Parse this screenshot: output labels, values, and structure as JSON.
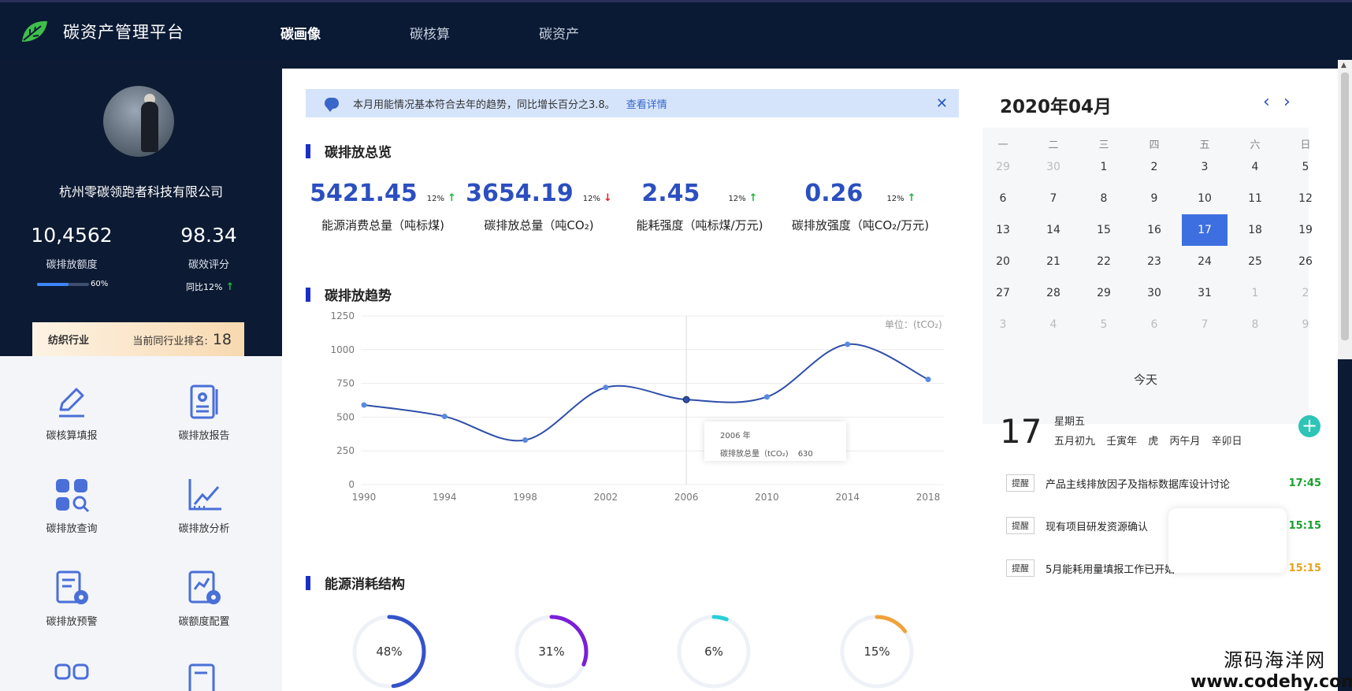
{
  "app": {
    "title": "碳资产管理平台"
  },
  "nav": {
    "items": [
      "碳画像",
      "碳核算",
      "碳资产"
    ]
  },
  "profile": {
    "company": "杭州零碳领跑者科技有限公司",
    "quota_value": "10,4562",
    "quota_label": "碳排放额度",
    "quota_progress_label": "60%",
    "quota_progress": 0.6,
    "score_value": "98.34",
    "score_label": "碳效评分",
    "score_yoy": "同比12%",
    "industry": "纺织行业",
    "rank_label": "当前同行业排名:",
    "rank_value": "18"
  },
  "menu": {
    "items": [
      {
        "label": "碳核算填报",
        "icon": "edit-icon"
      },
      {
        "label": "碳排放报告",
        "icon": "report-icon"
      },
      {
        "label": "碳排放查询",
        "icon": "query-icon"
      },
      {
        "label": "碳排放分析",
        "icon": "analysis-icon"
      },
      {
        "label": "碳排放预警",
        "icon": "warning-icon"
      },
      {
        "label": "碳额度配置",
        "icon": "config-icon"
      }
    ]
  },
  "notice": {
    "text": "本月用能情况基本符合去年的趋势，同比增长百分之3.8。",
    "link": "查看详情",
    "close": "✕"
  },
  "overview": {
    "title": "碳排放总览",
    "kpis": [
      {
        "value": "5421.45",
        "pct": "12%",
        "trend": "up",
        "label": "能源消费总量（吨标煤)"
      },
      {
        "value": "3654.19",
        "pct": "12%",
        "trend": "down",
        "label": "碳排放总量（吨CO₂)"
      },
      {
        "value": "2.45",
        "pct": "12%",
        "trend": "up",
        "label": "能耗强度（吨标煤/万元)"
      },
      {
        "value": "0.26",
        "pct": "12%",
        "trend": "up",
        "label": "碳排放强度（吨CO₂/万元)"
      }
    ]
  },
  "trend": {
    "title": "碳排放趋势",
    "unit": "单位：(tCO₂)",
    "tooltip": {
      "year": "2006 年",
      "series": "碳排放总量（tCO₂)",
      "value": "630"
    }
  },
  "chart_data": {
    "type": "line",
    "x": [
      "1990",
      "1994",
      "1998",
      "2002",
      "2006",
      "2010",
      "2014",
      "2018"
    ],
    "series": [
      {
        "name": "碳排放总量（tCO₂)",
        "values": [
          590,
          505,
          330,
          720,
          630,
          650,
          1040,
          780
        ]
      }
    ],
    "ylim": [
      0,
      1250
    ],
    "yticks": [
      0,
      250,
      500,
      750,
      1000,
      1250
    ],
    "grid": true,
    "color": "#2e4ea8"
  },
  "energy": {
    "title": "能源消耗结构",
    "rings": [
      {
        "label": "48%",
        "value": 0.48,
        "color": "#3552c8"
      },
      {
        "label": "31%",
        "value": 0.31,
        "color": "#7a1fd6"
      },
      {
        "label": "6%",
        "value": 0.06,
        "color": "#27d0d8"
      },
      {
        "label": "15%",
        "value": 0.15,
        "color": "#f0a23a"
      }
    ]
  },
  "calendar": {
    "month_label": "2020年04月",
    "prev": "‹",
    "next": "›",
    "weekdays": [
      "一",
      "二",
      "三",
      "四",
      "五",
      "六",
      "日"
    ],
    "days": [
      [
        "29",
        "30",
        "1",
        "2",
        "3",
        "4",
        "5"
      ],
      [
        "6",
        "7",
        "8",
        "9",
        "10",
        "11",
        "12"
      ],
      [
        "13",
        "14",
        "15",
        "16",
        "17",
        "18",
        "19"
      ],
      [
        "20",
        "21",
        "22",
        "23",
        "24",
        "25",
        "26"
      ],
      [
        "27",
        "28",
        "29",
        "30",
        "31",
        "1",
        "2"
      ],
      [
        "3",
        "4",
        "5",
        "6",
        "7",
        "8",
        "9"
      ]
    ],
    "selected": "17",
    "today_label": "今天",
    "big_day": "17",
    "weekday": "星期五",
    "lunar": "五月初九 壬寅年 虎 丙午月 辛卯日",
    "add": "+",
    "reminders": [
      {
        "tag": "提醒",
        "text": "产品主线排放因子及指标数据库设计讨论",
        "time": "17:45",
        "color": "#18a02e"
      },
      {
        "tag": "提醒",
        "text": "现有项目研发资源确认",
        "time": "15:15",
        "color": "#18a02e"
      },
      {
        "tag": "提醒",
        "text": "5月能耗用量填报工作已开始",
        "time": "15:15",
        "color": "#e5a21a"
      }
    ]
  },
  "watermark": {
    "line1": "源码海洋网",
    "line2": "www.codehy.com"
  },
  "colors": {
    "accent": "#2c4fc0",
    "dark_bg": "#0c1a33",
    "up": "#1fb53c",
    "down": "#e02020"
  }
}
